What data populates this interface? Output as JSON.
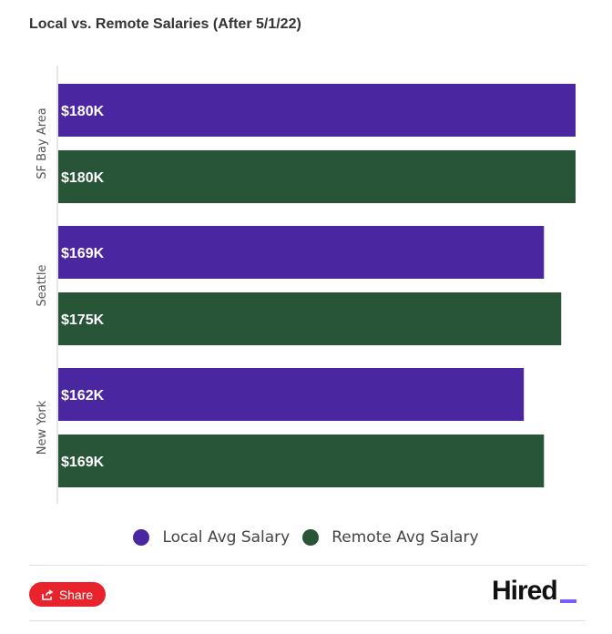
{
  "title": "Local vs. Remote Salaries (After 5/1/22)",
  "chart_data": {
    "type": "bar",
    "orientation": "horizontal",
    "title": "Local vs. Remote Salaries (After 5/1/22)",
    "categories": [
      "SF Bay Area",
      "Seattle",
      "New York"
    ],
    "series": [
      {
        "name": "Local Avg Salary",
        "color": "#4a26a0",
        "values": [
          180,
          169,
          162
        ],
        "labels": [
          "$180K",
          "$169K",
          "$162K"
        ]
      },
      {
        "name": "Remote Avg Salary",
        "color": "#285438",
        "values": [
          180,
          175,
          169
        ],
        "labels": [
          "$180K",
          "$175K",
          "$169K"
        ]
      }
    ],
    "xlim": [
      0,
      180
    ],
    "units": "thousands USD",
    "grid": false,
    "legend": "bottom-center"
  },
  "legend": {
    "items": [
      {
        "label": "Local Avg Salary",
        "color": "#4a26a0"
      },
      {
        "label": "Remote Avg Salary",
        "color": "#285438"
      }
    ]
  },
  "share": {
    "label": "Share",
    "icon": "share-icon",
    "color": "#e8232b"
  },
  "logo": {
    "text": "Hired",
    "accent": "#7c5cff"
  }
}
